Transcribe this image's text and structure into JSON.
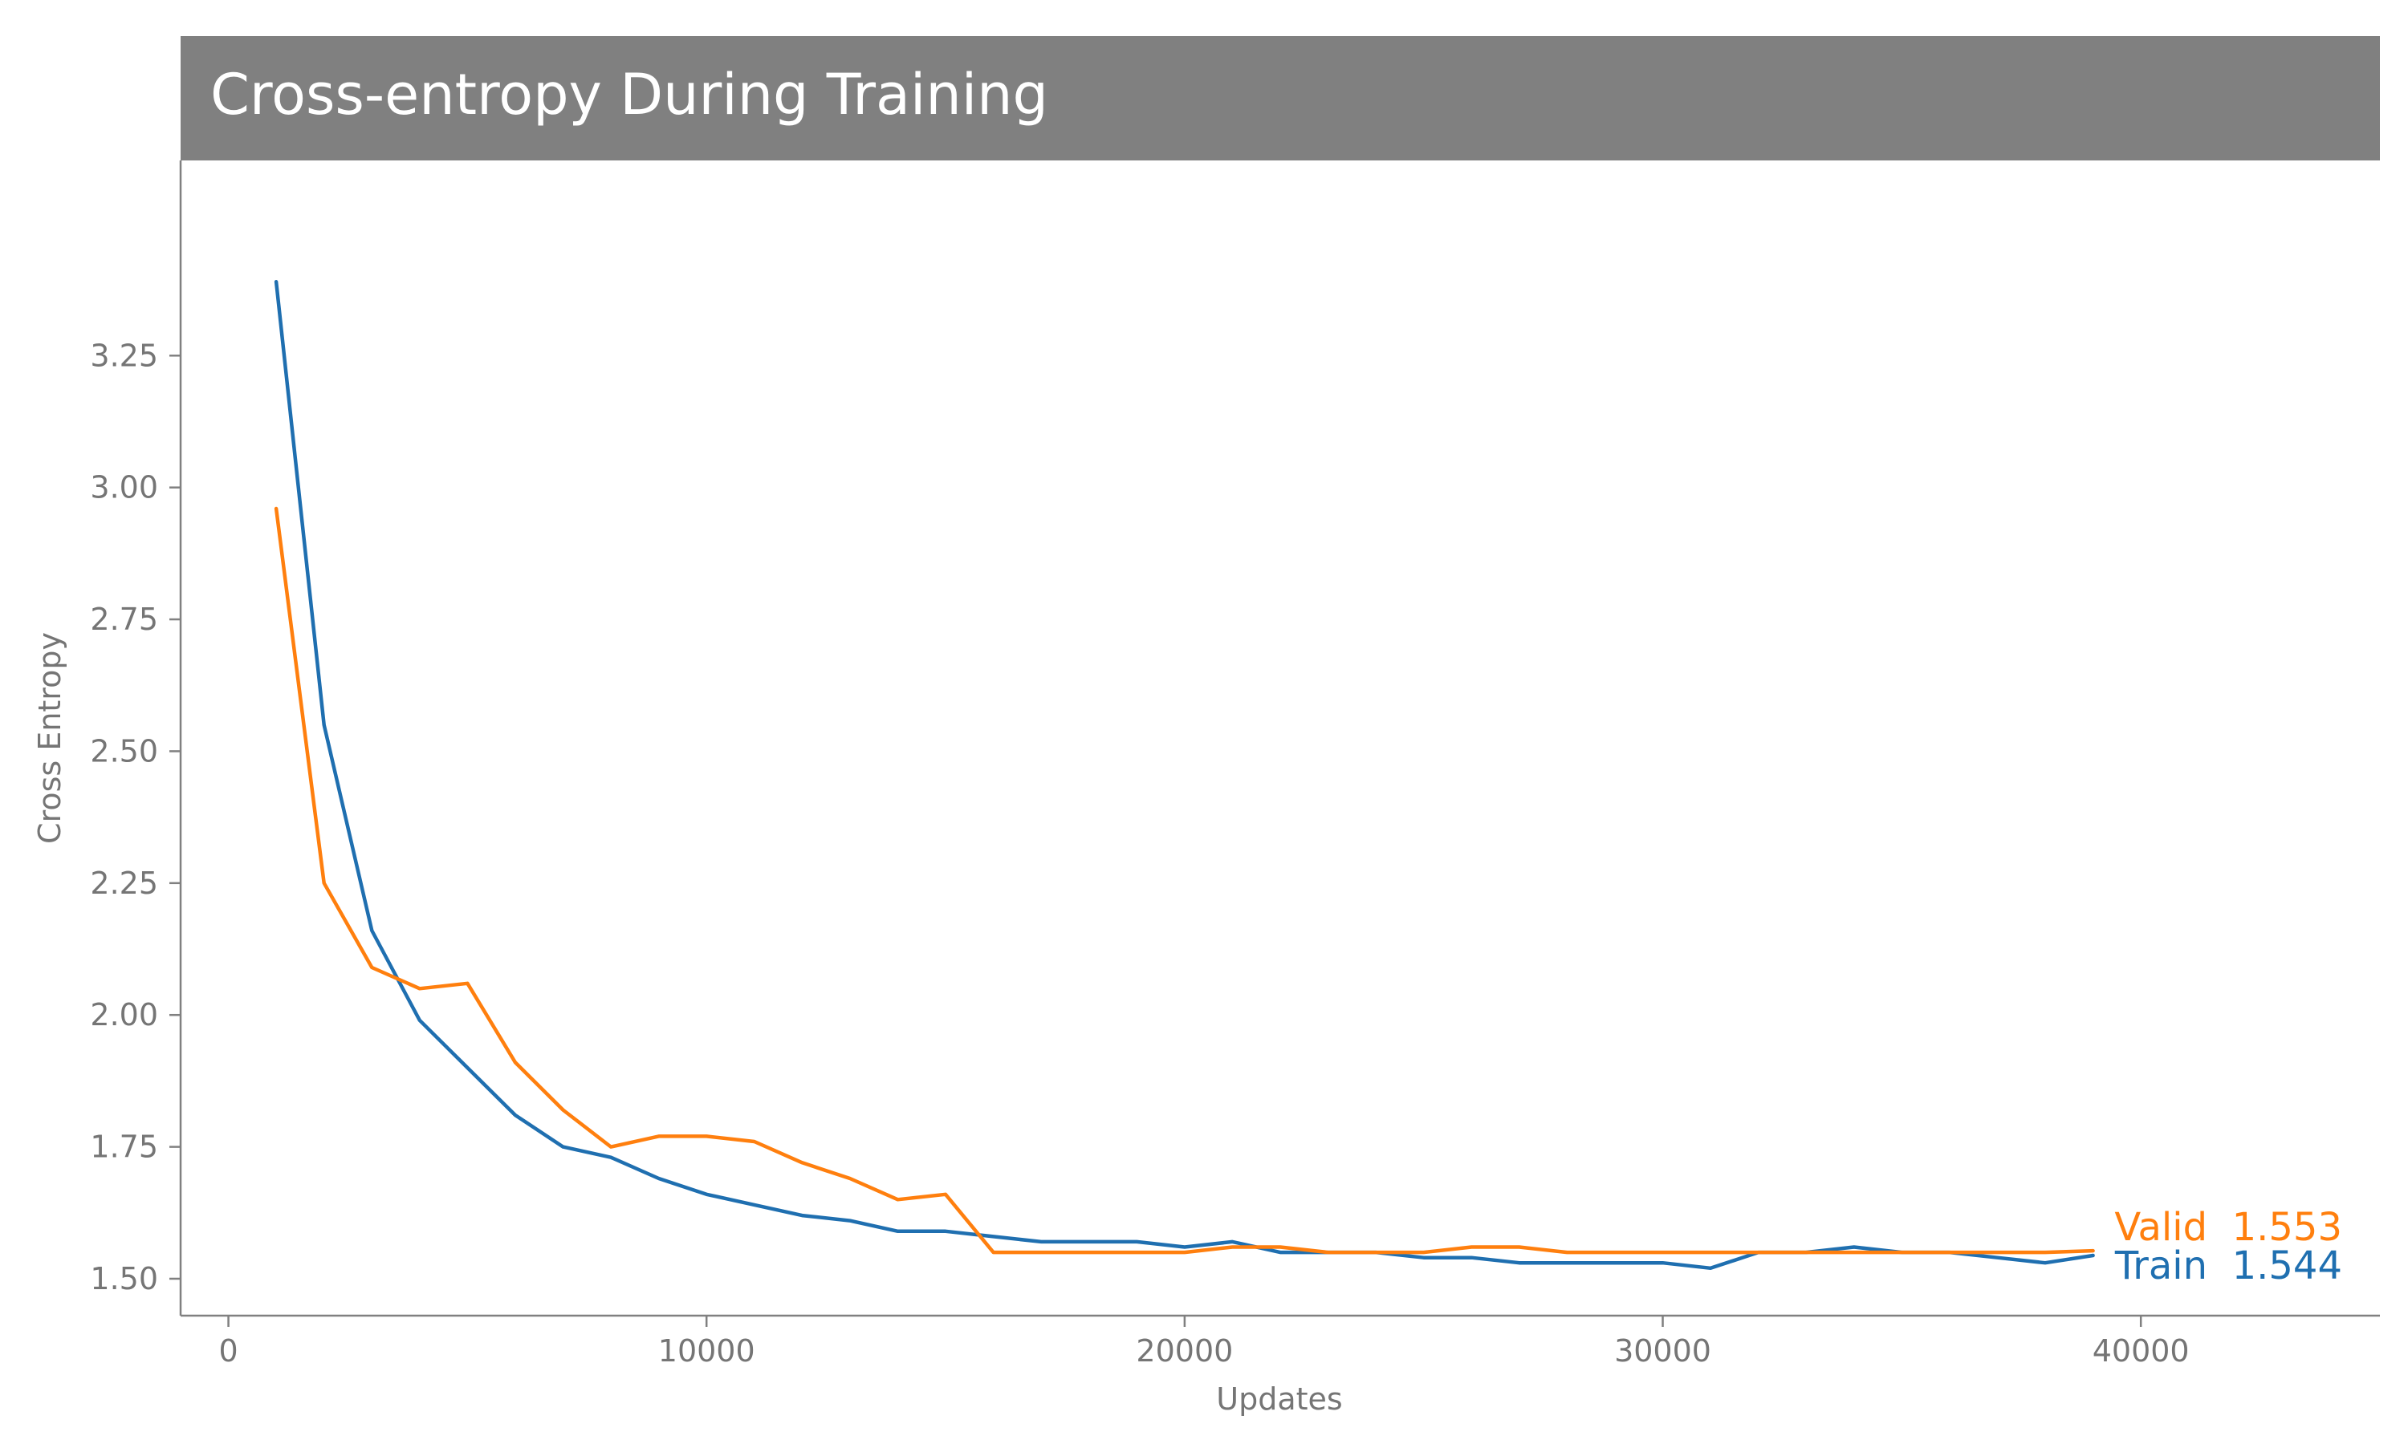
{
  "chart_data": {
    "type": "line",
    "title": "Cross-entropy During Training",
    "xlabel": "Updates",
    "ylabel": "Cross Entropy",
    "xlim": [
      -1000,
      45000
    ],
    "ylim": [
      1.43,
      3.62
    ],
    "xticks": [
      0,
      10000,
      20000,
      30000,
      40000
    ],
    "xtick_labels": [
      "0",
      "10000",
      "20000",
      "30000",
      "40000"
    ],
    "yticks": [
      1.5,
      1.75,
      2.0,
      2.25,
      2.5,
      2.75,
      3.0,
      3.25
    ],
    "ytick_labels": [
      "1.50",
      "1.75",
      "2.00",
      "2.25",
      "2.50",
      "2.75",
      "3.00",
      "3.25"
    ],
    "grid": false,
    "legend": "none",
    "x": [
      1000,
      2000,
      3000,
      4000,
      5000,
      6000,
      7000,
      8000,
      9000,
      10000,
      11000,
      12000,
      13000,
      14000,
      15000,
      16000,
      17000,
      18000,
      19000,
      20000,
      21000,
      22000,
      23000,
      24000,
      25000,
      26000,
      27000,
      28000,
      29000,
      30000,
      31000,
      32000,
      33000,
      34000,
      35000,
      36000,
      37000,
      38000,
      39000
    ],
    "series": [
      {
        "name": "Train",
        "color": "#1f6fb0",
        "end_label": "Train  1.544",
        "values": [
          3.39,
          2.55,
          2.16,
          1.99,
          1.9,
          1.81,
          1.75,
          1.73,
          1.69,
          1.66,
          1.64,
          1.62,
          1.61,
          1.59,
          1.59,
          1.58,
          1.57,
          1.57,
          1.57,
          1.56,
          1.57,
          1.55,
          1.55,
          1.55,
          1.54,
          1.54,
          1.53,
          1.53,
          1.53,
          1.53,
          1.52,
          1.55,
          1.55,
          1.56,
          1.55,
          1.55,
          1.54,
          1.53,
          1.544
        ]
      },
      {
        "name": "Valid",
        "color": "#ff7f0e",
        "end_label": "Valid  1.553",
        "values": [
          2.96,
          2.25,
          2.09,
          2.05,
          2.06,
          1.91,
          1.82,
          1.75,
          1.77,
          1.77,
          1.76,
          1.72,
          1.69,
          1.65,
          1.66,
          1.55,
          1.55,
          1.55,
          1.55,
          1.55,
          1.56,
          1.56,
          1.55,
          1.55,
          1.55,
          1.56,
          1.56,
          1.55,
          1.55,
          1.55,
          1.55,
          1.55,
          1.55,
          1.55,
          1.55,
          1.55,
          1.55,
          1.55,
          1.553
        ]
      }
    ]
  },
  "colors": {
    "title_bar": "#808080",
    "axis": "#808080",
    "text": "#757575"
  }
}
